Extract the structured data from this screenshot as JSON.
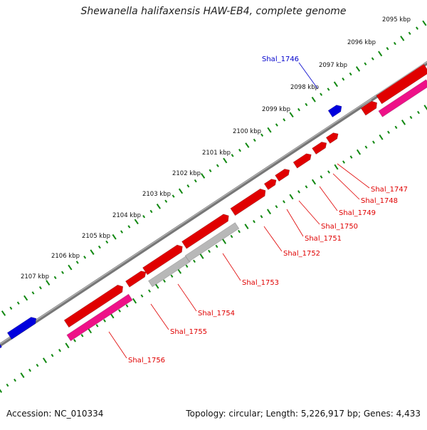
{
  "title": "Shewanella halifaxensis HAW-EB4, complete genome",
  "footer": {
    "accession": "Accession: NC_010334",
    "stats": "Topology: circular; Length: 5,226,917 bp; Genes: 4,433"
  },
  "ticks": [
    "2095 kbp",
    "2096 kbp",
    "2097 kbp",
    "2098 kbp",
    "2099 kbp",
    "2100 kbp",
    "2101 kbp",
    "2102 kbp",
    "2103 kbp",
    "2104 kbp",
    "2105 kbp",
    "2106 kbp",
    "2107 kbp"
  ],
  "genes": [
    {
      "id": "Shal_1746",
      "color": "#0000cc"
    },
    {
      "id": "Shal_1747",
      "color": "#e00000"
    },
    {
      "id": "Shal_1748",
      "color": "#e00000"
    },
    {
      "id": "Shal_1749",
      "color": "#e00000"
    },
    {
      "id": "Shal_1750",
      "color": "#e00000"
    },
    {
      "id": "Shal_1751",
      "color": "#e00000"
    },
    {
      "id": "Shal_1752",
      "color": "#e00000"
    },
    {
      "id": "Shal_1753",
      "color": "#e00000"
    },
    {
      "id": "Shal_1754",
      "color": "#e00000"
    },
    {
      "id": "Shal_1755",
      "color": "#e00000"
    },
    {
      "id": "Shal_1756",
      "color": "#e00000"
    }
  ],
  "colors": {
    "cds_forward": "#e00000",
    "cds_other": "#0000dd",
    "rrna": "#ee1188",
    "trna_gray": "#b8b8b8",
    "backbone": "#808080",
    "gc_ticks": "#118811"
  }
}
